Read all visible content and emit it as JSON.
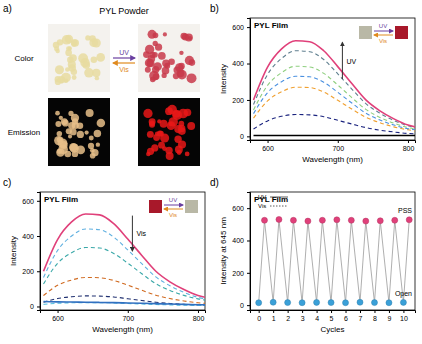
{
  "photo_panel": {
    "panel_label": "a)",
    "title": "PYL Powder",
    "rows": [
      "Color",
      "Emission"
    ],
    "forward_label": "UV",
    "backward_label": "Vis"
  },
  "chart_data": [
    {
      "type": "line",
      "panel_label": "b)",
      "title": "PYL Film",
      "x_label": "Wavelength (nm)",
      "y_label": "Intensity",
      "inset_labels": [
        "UV",
        "Vis"
      ],
      "trend_label": "UV",
      "x": [
        580,
        600,
        620,
        640,
        660,
        680,
        700,
        720,
        740,
        760,
        780,
        800,
        810
      ],
      "xlim": [
        575,
        810
      ],
      "xticks": [
        600,
        700,
        800
      ],
      "ylim": [
        -20,
        650
      ],
      "yticks": [
        0,
        200,
        400,
        600
      ],
      "series": [
        {
          "color": "#000000",
          "line_style": "solid",
          "values": [
            5,
            5,
            5,
            5,
            5,
            5,
            5,
            5,
            5,
            5,
            5,
            5,
            5
          ]
        },
        {
          "color": "#1a237e",
          "line_style": "dashed",
          "values": [
            40,
            85,
            110,
            120,
            118,
            108,
            88,
            68,
            48,
            34,
            24,
            16,
            14
          ]
        },
        {
          "color": "#f0a030",
          "line_style": "dashed",
          "values": [
            100,
            195,
            245,
            270,
            268,
            243,
            198,
            150,
            105,
            75,
            52,
            36,
            30
          ]
        },
        {
          "color": "#4a90e0",
          "line_style": "dashed",
          "values": [
            125,
            240,
            300,
            330,
            327,
            297,
            242,
            183,
            127,
            90,
            62,
            42,
            36
          ]
        },
        {
          "color": "#8fcf7f",
          "line_style": "dashed",
          "values": [
            145,
            280,
            350,
            385,
            381,
            346,
            282,
            213,
            148,
            104,
            72,
            48,
            40
          ]
        },
        {
          "color": "#5f7f8f",
          "line_style": "dashed",
          "values": [
            175,
            340,
            428,
            470,
            465,
            422,
            343,
            260,
            180,
            127,
            87,
            58,
            48
          ]
        },
        {
          "color": "#e0407a",
          "line_style": "solid",
          "values": [
            200,
            380,
            480,
            525,
            520,
            470,
            383,
            290,
            200,
            140,
            96,
            62,
            52
          ]
        }
      ]
    },
    {
      "type": "line",
      "panel_label": "c)",
      "title": "PYL Film",
      "x_label": "Wavelength (nm)",
      "y_label": "Intensity",
      "inset_labels": [
        "UV",
        "Vis"
      ],
      "trend_label": "Vis",
      "x": [
        580,
        600,
        620,
        640,
        660,
        680,
        700,
        720,
        740,
        760,
        780,
        800,
        810
      ],
      "xlim": [
        575,
        810
      ],
      "xticks": [
        600,
        700,
        800
      ],
      "ylim": [
        -20,
        650
      ],
      "yticks": [
        0,
        200,
        400,
        600
      ],
      "series": [
        {
          "color": "#e0407a",
          "line_style": "solid",
          "values": [
            200,
            380,
            480,
            525,
            520,
            470,
            383,
            290,
            200,
            140,
            96,
            62,
            52
          ]
        },
        {
          "color": "#60b0e0",
          "line_style": "dashed",
          "values": [
            165,
            318,
            400,
            440,
            436,
            394,
            321,
            243,
            168,
            118,
            80,
            52,
            44
          ]
        },
        {
          "color": "#3aa8a8",
          "line_style": "dashed",
          "values": [
            128,
            245,
            305,
            335,
            332,
            301,
            246,
            186,
            129,
            91,
            63,
            43,
            36
          ]
        },
        {
          "color": "#d06a20",
          "line_style": "dashed",
          "values": [
            62,
            120,
            150,
            165,
            163,
            148,
            121,
            92,
            64,
            45,
            31,
            21,
            18
          ]
        },
        {
          "color": "#203070",
          "line_style": "dashed",
          "values": [
            24,
            45,
            55,
            60,
            59,
            54,
            44,
            34,
            24,
            17,
            12,
            8,
            7
          ]
        },
        {
          "color": "#50c0e0",
          "line_style": "dashed",
          "values": [
            12,
            18,
            21,
            22,
            22,
            20,
            17,
            14,
            11,
            9,
            7,
            6,
            5
          ]
        },
        {
          "color": "#3070c0",
          "line_style": "solid",
          "values": [
            28,
            26,
            25,
            24,
            23,
            22,
            20,
            18,
            16,
            14,
            12,
            10,
            9
          ]
        }
      ]
    },
    {
      "type": "scatter",
      "panel_label": "d)",
      "title": "PYL Film",
      "x_label": "Cycles",
      "y_label": "Intensity at 645 nm",
      "annotations": [
        "UV",
        "Vis"
      ],
      "xlim": [
        -0.6,
        10.8
      ],
      "xticks": [
        0,
        1,
        2,
        3,
        4,
        5,
        6,
        7,
        8,
        9,
        10
      ],
      "ylim": [
        -30,
        700
      ],
      "yticks": [
        0,
        200,
        400,
        600
      ],
      "series": [
        {
          "name": "PSS",
          "color": "#e0407a",
          "marker": "circle",
          "x": [
            0.4,
            1.4,
            2.4,
            3.4,
            4.4,
            5.4,
            6.4,
            7.4,
            8.4,
            9.4,
            10.4
          ],
          "values": [
            525,
            530,
            525,
            520,
            525,
            528,
            525,
            520,
            522,
            525,
            528
          ]
        },
        {
          "name": "Open",
          "color": "#3aa0d8",
          "marker": "circle",
          "x": [
            0,
            1,
            2,
            3,
            4,
            5,
            6,
            7,
            8,
            9,
            10
          ],
          "values": [
            15,
            18,
            16,
            15,
            17,
            16,
            15,
            18,
            16,
            15,
            17
          ]
        }
      ]
    }
  ]
}
